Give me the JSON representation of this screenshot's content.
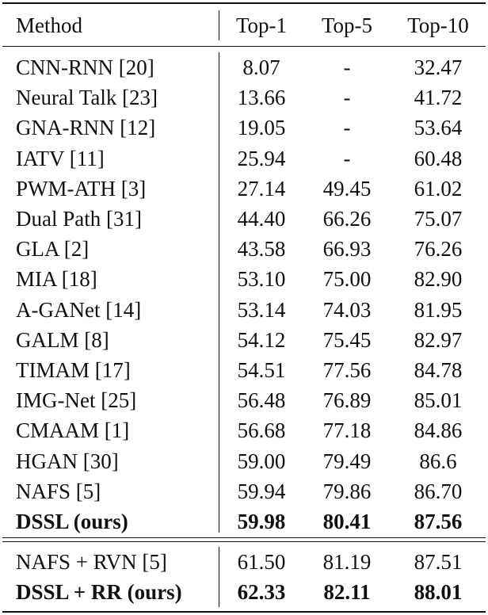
{
  "table": {
    "headers": {
      "method": "Method",
      "top1": "Top-1",
      "top5": "Top-5",
      "top10": "Top-10"
    },
    "rows": [
      {
        "method": "CNN-RNN [20]",
        "top1": "8.07",
        "top5": "-",
        "top10": "32.47"
      },
      {
        "method": "Neural Talk [23]",
        "top1": "13.66",
        "top5": "-",
        "top10": "41.72"
      },
      {
        "method": "GNA-RNN [12]",
        "top1": "19.05",
        "top5": "-",
        "top10": "53.64"
      },
      {
        "method": "IATV [11]",
        "top1": "25.94",
        "top5": "-",
        "top10": "60.48"
      },
      {
        "method": "PWM-ATH [3]",
        "top1": "27.14",
        "top5": "49.45",
        "top10": "61.02"
      },
      {
        "method": "Dual Path [31]",
        "top1": "44.40",
        "top5": "66.26",
        "top10": "75.07"
      },
      {
        "method": "GLA [2]",
        "top1": "43.58",
        "top5": "66.93",
        "top10": "76.26"
      },
      {
        "method": "MIA [18]",
        "top1": "53.10",
        "top5": "75.00",
        "top10": "82.90"
      },
      {
        "method": "A-GANet [14]",
        "top1": "53.14",
        "top5": "74.03",
        "top10": "81.95"
      },
      {
        "method": "GALM [8]",
        "top1": "54.12",
        "top5": "75.45",
        "top10": "82.97"
      },
      {
        "method": "TIMAM [17]",
        "top1": "54.51",
        "top5": "77.56",
        "top10": "84.78"
      },
      {
        "method": "IMG-Net [25]",
        "top1": "56.48",
        "top5": "76.89",
        "top10": "85.01"
      },
      {
        "method": "CMAAM [1]",
        "top1": "56.68",
        "top5": "77.18",
        "top10": "84.86"
      },
      {
        "method": "HGAN [30]",
        "top1": "59.00",
        "top5": "79.49",
        "top10": "86.6"
      },
      {
        "method": "NAFS [5]",
        "top1": "59.94",
        "top5": "79.86",
        "top10": "86.70"
      },
      {
        "method": "DSSL (ours)",
        "top1": "59.98",
        "top5": "80.41",
        "top10": "87.56",
        "bold": true
      }
    ],
    "rerank_rows": [
      {
        "method": "NAFS + RVN [5]",
        "top1": "61.50",
        "top5": "81.19",
        "top10": "87.51"
      },
      {
        "method": "DSSL + RR (ours)",
        "top1": "62.33",
        "top5": "82.11",
        "top10": "88.01",
        "bold": true
      }
    ]
  }
}
